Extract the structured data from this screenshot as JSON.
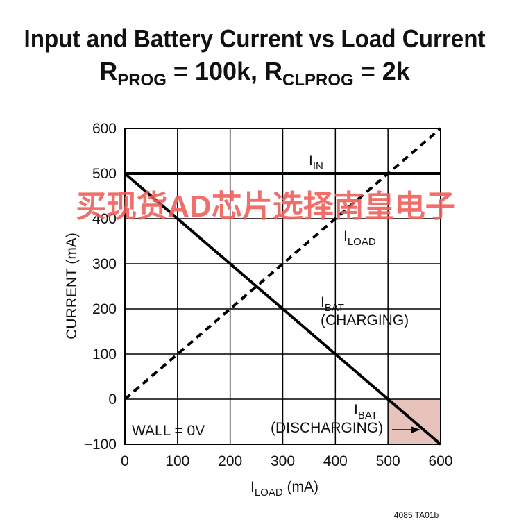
{
  "chart_data": {
    "type": "line",
    "title": "Input and Battery Current vs Load Current",
    "subtitle": [
      "R",
      "PROG",
      " = 100k, R",
      "CLPROG",
      " = 2k"
    ],
    "x_label": [
      "I",
      "LOAD",
      " (mA)"
    ],
    "y_label": "CURRENT (mA)",
    "x": [
      0,
      600
    ],
    "series": [
      {
        "color": "#000000",
        "dash": false,
        "values": [
          500,
          500
        ]
      },
      {
        "color": "#000000",
        "dash": true,
        "values": [
          0,
          600
        ]
      },
      {
        "color": "#000000",
        "dash": false,
        "values": [
          500,
          -100
        ]
      }
    ],
    "labels": [
      [
        "I",
        "IN"
      ],
      [
        "I",
        "LOAD"
      ],
      [
        "I",
        "BAT",
        "(CHARGING)"
      ],
      [
        "I",
        "BAT",
        "(DISCHARGING)"
      ],
      [
        "WALL = 0V"
      ]
    ],
    "shaded_region": {
      "x": [
        500,
        600
      ],
      "y": [
        -100,
        0
      ],
      "color": "#e8c3bc"
    },
    "xlim": [
      0,
      600
    ],
    "ylim": [
      -100,
      600
    ],
    "xticks": [
      0,
      100,
      200,
      300,
      400,
      500,
      600
    ],
    "yticks": [
      {
        "value": -100,
        "label": "−100"
      },
      0,
      100,
      200,
      300,
      400,
      500,
      600
    ],
    "grid": true,
    "watermark": "买现货AD芯片选择南皇电子",
    "footnote": "4085 TA01b"
  }
}
